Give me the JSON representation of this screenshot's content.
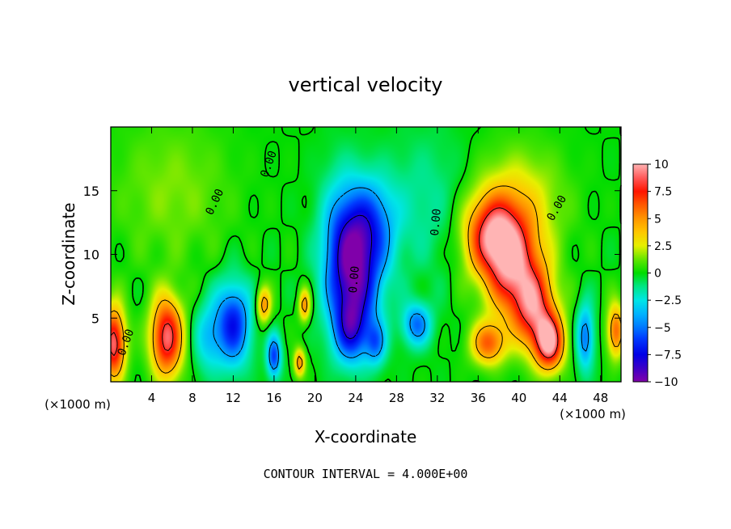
{
  "chart_data": {
    "type": "heatmap",
    "title": "vertical velocity",
    "xlabel": "X-coordinate",
    "ylabel": "Z-coordinate",
    "x_unit": "(×1000 m)",
    "xlim": [
      0,
      50
    ],
    "ylim": [
      0,
      20
    ],
    "x_ticks": [
      {
        "value": 4,
        "label": "4"
      },
      {
        "value": 8,
        "label": "8"
      },
      {
        "value": 12,
        "label": "12"
      },
      {
        "value": 16,
        "label": "16"
      },
      {
        "value": 20,
        "label": "20"
      },
      {
        "value": 24,
        "label": "24"
      },
      {
        "value": 28,
        "label": "28"
      },
      {
        "value": 32,
        "label": "32"
      },
      {
        "value": 36,
        "label": "36"
      },
      {
        "value": 40,
        "label": "40"
      },
      {
        "value": 44,
        "label": "44"
      },
      {
        "value": 48,
        "label": "48"
      }
    ],
    "y_ticks": [
      {
        "value": 5,
        "label": "5"
      },
      {
        "value": 10,
        "label": "10"
      },
      {
        "value": 15,
        "label": "15"
      }
    ],
    "colorbar": {
      "range": [
        -10,
        10
      ],
      "ticks": [
        {
          "value": 10,
          "label": "10"
        },
        {
          "value": 7.5,
          "label": "7.5"
        },
        {
          "value": 5,
          "label": "5"
        },
        {
          "value": 2.5,
          "label": "2.5"
        },
        {
          "value": 0,
          "label": "0"
        },
        {
          "value": -2.5,
          "label": "−2.5"
        },
        {
          "value": -5,
          "label": "−5"
        },
        {
          "value": -7.5,
          "label": "−7.5"
        },
        {
          "value": -10,
          "label": "−10"
        }
      ]
    },
    "contour_label": "0.00",
    "contour_interval_text": "CONTOUR INTERVAL = 4.000E+00",
    "features": [
      {
        "x": 0.3,
        "z": 3.0,
        "w": 9,
        "sx": 0.8,
        "sz": 2.0
      },
      {
        "x": 5.5,
        "z": 3.5,
        "w": 9,
        "sx": 1.1,
        "sz": 2.2
      },
      {
        "x": 12.0,
        "z": 4.5,
        "w": -7,
        "sx": 1.2,
        "sz": 2.3
      },
      {
        "x": 9.5,
        "z": 3.5,
        "w": -3,
        "sx": 1.0,
        "sz": 2.0
      },
      {
        "x": 15.0,
        "z": 6.0,
        "w": 5,
        "sx": 0.5,
        "sz": 1.0
      },
      {
        "x": 19.0,
        "z": 6.0,
        "w": 5,
        "sx": 0.4,
        "sz": 0.9
      },
      {
        "x": 16.0,
        "z": 2.0,
        "w": -6,
        "sx": 0.5,
        "sz": 1.2
      },
      {
        "x": 18.5,
        "z": 1.5,
        "w": 5,
        "sx": 0.4,
        "sz": 0.8
      },
      {
        "x": 24.0,
        "z": 8.5,
        "w": -8,
        "sx": 1.8,
        "sz": 3.5
      },
      {
        "x": 23.5,
        "z": 4.0,
        "w": -5,
        "sx": 1.2,
        "sz": 1.8
      },
      {
        "x": 25.5,
        "z": 12.5,
        "w": -4,
        "sx": 1.8,
        "sz": 2.5
      },
      {
        "x": 22.5,
        "z": 11.0,
        "w": -3,
        "sx": 1.5,
        "sz": 4.0
      },
      {
        "x": 30.0,
        "z": 4.5,
        "w": -5,
        "sx": 1.0,
        "sz": 1.2
      },
      {
        "x": 26.0,
        "z": 3.0,
        "w": -4,
        "sx": 0.7,
        "sz": 1.2
      },
      {
        "x": 37.5,
        "z": 11.5,
        "w": 8,
        "sx": 2.0,
        "sz": 2.2
      },
      {
        "x": 39.5,
        "z": 8.5,
        "w": 7,
        "sx": 2.0,
        "sz": 2.5
      },
      {
        "x": 41.5,
        "z": 5.5,
        "w": 7,
        "sx": 1.5,
        "sz": 2.2
      },
      {
        "x": 43.0,
        "z": 3.0,
        "w": 9,
        "sx": 1.0,
        "sz": 1.5
      },
      {
        "x": 37.0,
        "z": 3.0,
        "w": 6,
        "sx": 1.2,
        "sz": 1.2
      },
      {
        "x": 40.0,
        "z": 14.0,
        "w": 3,
        "sx": 3.0,
        "sz": 3.0
      },
      {
        "x": 46.5,
        "z": 3.5,
        "w": -5,
        "sx": 0.6,
        "sz": 1.8
      },
      {
        "x": 49.5,
        "z": 4.0,
        "w": 6,
        "sx": 0.6,
        "sz": 1.5
      },
      {
        "x": 31.0,
        "z": 14.0,
        "w": -1.5,
        "sx": 3.0,
        "sz": 4.0
      },
      {
        "x": 6.0,
        "z": 15.0,
        "w": 1.5,
        "sx": 4.0,
        "sz": 4.0
      }
    ]
  }
}
